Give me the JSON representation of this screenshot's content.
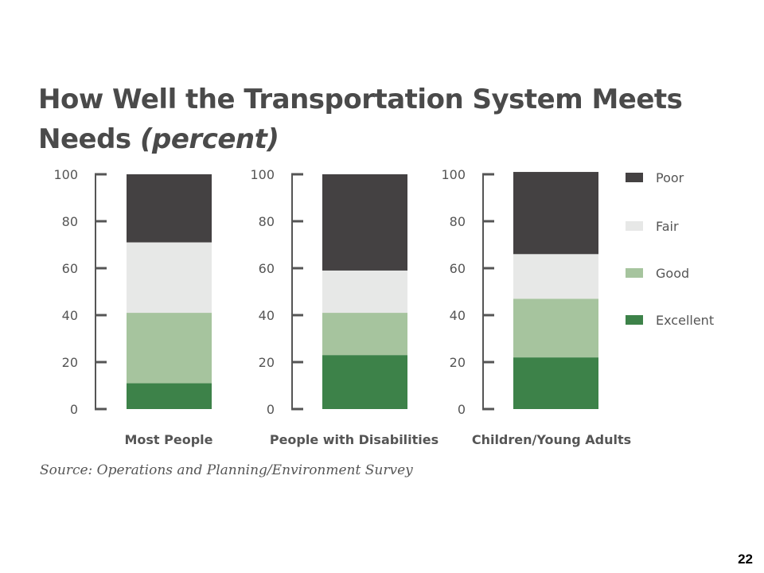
{
  "title_main": "How Well the Transportation System Meets Needs",
  "title_unit": "(percent)",
  "source": "Source: Operations and Planning/Environment Survey",
  "page_number": "22",
  "chart_data": {
    "type": "bar",
    "stacked": true,
    "categories": [
      "Most People",
      "People with Disabilities",
      "Children/Young Adults"
    ],
    "ylim": [
      0,
      100
    ],
    "yticks": [
      0,
      20,
      40,
      60,
      80,
      100
    ],
    "series": [
      {
        "name": "Excellent",
        "color": "#3d8249",
        "values": [
          11,
          23,
          22
        ]
      },
      {
        "name": "Good",
        "color": "#a6c49e",
        "values": [
          30,
          18,
          25
        ]
      },
      {
        "name": "Fair",
        "color": "#e7e8e7",
        "values": [
          30,
          18,
          19
        ]
      },
      {
        "name": "Poor",
        "color": "#444142",
        "values": [
          29,
          41,
          35
        ]
      }
    ],
    "legend": [
      "Poor",
      "Fair",
      "Good",
      "Excellent"
    ],
    "legend_position": "right",
    "grid": false
  }
}
